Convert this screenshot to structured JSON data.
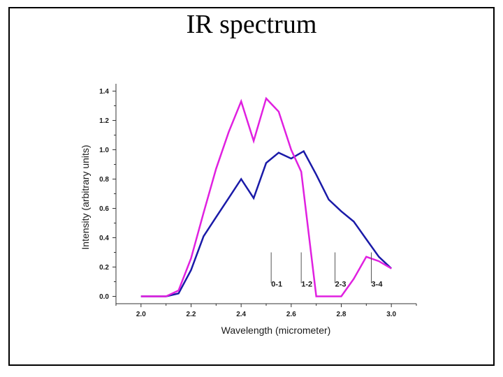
{
  "slide": {
    "title": "IR spectrum"
  },
  "chart_data": {
    "type": "line",
    "title": "",
    "xlabel": "Wavelength (micrometer)",
    "ylabel": "Intensity (arbitrary units)",
    "xlim": [
      1.9,
      3.1
    ],
    "ylim": [
      -0.05,
      1.45
    ],
    "x_ticks": [
      "2.0",
      "2.2",
      "2.4",
      "2.6",
      "2.8",
      "3.0"
    ],
    "x_tick_values": [
      2.0,
      2.2,
      2.4,
      2.6,
      2.8,
      3.0
    ],
    "y_ticks": [
      "0.0",
      "0.2",
      "0.4",
      "0.6",
      "0.8",
      "1.0",
      "1.2",
      "1.4"
    ],
    "y_tick_values": [
      0.0,
      0.2,
      0.4,
      0.6,
      0.8,
      1.0,
      1.2,
      1.4
    ],
    "grid": false,
    "legend": "none",
    "series": [
      {
        "color": "#1a1aa8",
        "x": [
          2.0,
          2.1,
          2.15,
          2.2,
          2.25,
          2.3,
          2.35,
          2.4,
          2.45,
          2.5,
          2.55,
          2.6,
          2.65,
          2.7,
          2.75,
          2.8,
          2.85,
          2.9,
          2.95,
          3.0
        ],
        "y": [
          0.0,
          0.0,
          0.02,
          0.18,
          0.41,
          0.54,
          0.67,
          0.8,
          0.67,
          0.91,
          0.98,
          0.94,
          0.99,
          0.83,
          0.66,
          0.58,
          0.51,
          0.39,
          0.27,
          0.19
        ]
      },
      {
        "color": "#e020e0",
        "x": [
          2.0,
          2.1,
          2.15,
          2.2,
          2.25,
          2.3,
          2.35,
          2.4,
          2.45,
          2.5,
          2.55,
          2.6,
          2.64,
          2.7,
          2.75,
          2.8,
          2.85,
          2.9,
          2.95,
          3.0
        ],
        "y": [
          0.0,
          0.0,
          0.04,
          0.26,
          0.57,
          0.87,
          1.12,
          1.33,
          1.06,
          1.35,
          1.26,
          1.0,
          0.85,
          0.0,
          0.0,
          0.0,
          0.12,
          0.27,
          0.24,
          0.19
        ]
      }
    ],
    "transitions": [
      {
        "label": "0-1",
        "x": 2.52,
        "y_top": 0.3,
        "y_bottom": 0.09
      },
      {
        "label": "1-2",
        "x": 2.64,
        "y_top": 0.3,
        "y_bottom": 0.09
      },
      {
        "label": "2-3",
        "x": 2.775,
        "y_top": 0.3,
        "y_bottom": 0.09
      },
      {
        "label": "3-4",
        "x": 2.92,
        "y_top": 0.3,
        "y_bottom": 0.09
      }
    ]
  }
}
